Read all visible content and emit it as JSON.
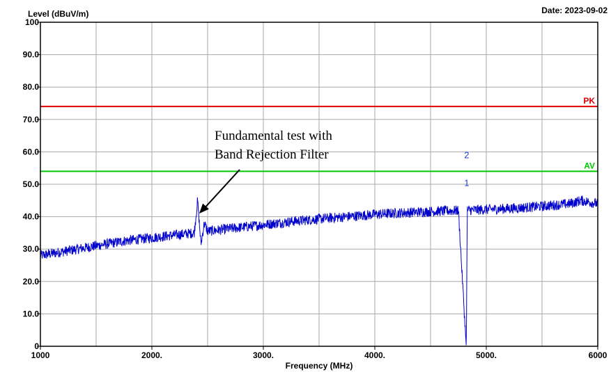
{
  "chart_data": {
    "type": "line",
    "date": "Date: 2023-09-02",
    "ylabel": "Level (dBuV/m)",
    "xlabel": "Frequency (MHz)",
    "xlim": [
      1000,
      6000
    ],
    "ylim": [
      0,
      100
    ],
    "grid": true,
    "x_ticks": [
      {
        "value": 1000,
        "label": "1000"
      },
      {
        "value": 2000,
        "label": "2000."
      },
      {
        "value": 3000,
        "label": "3000."
      },
      {
        "value": 4000,
        "label": "4000."
      },
      {
        "value": 5000,
        "label": "5000."
      },
      {
        "value": 6000,
        "label": "6000"
      }
    ],
    "y_ticks": [
      {
        "value": 0,
        "label": "0"
      },
      {
        "value": 10,
        "label": "10.0"
      },
      {
        "value": 20,
        "label": "20.0"
      },
      {
        "value": 30,
        "label": "30.0"
      },
      {
        "value": 40,
        "label": "40.0"
      },
      {
        "value": 50,
        "label": "50.0"
      },
      {
        "value": 60,
        "label": "60.0"
      },
      {
        "value": 70,
        "label": "70.0"
      },
      {
        "value": 80,
        "label": "80.0"
      },
      {
        "value": 90,
        "label": "90.0"
      },
      {
        "value": 100,
        "label": "100"
      }
    ],
    "limits": [
      {
        "label": "PK",
        "value": 74,
        "color": "#e00000"
      },
      {
        "label": "AV",
        "value": 54,
        "color": "#00c800"
      }
    ],
    "series": [
      {
        "color": "#0000cc",
        "x": [
          1000,
          1250,
          1500,
          1750,
          2000,
          2200,
          2380,
          2410,
          2440,
          2470,
          2500,
          2750,
          3000,
          3250,
          3500,
          3750,
          4000,
          4250,
          4500,
          4750,
          4820,
          4830,
          4840,
          5000,
          5250,
          5500,
          5750,
          5850,
          6000
        ],
        "y": [
          28,
          29.5,
          31,
          32.5,
          33.5,
          34.3,
          35,
          45,
          31.5,
          38,
          35.5,
          36.5,
          37.5,
          38.5,
          39.3,
          40,
          40.7,
          41.2,
          41.6,
          41.9,
          0,
          42,
          42,
          42.2,
          42.6,
          43.2,
          44,
          45,
          44
        ]
      }
    ],
    "markers": [
      {
        "label": "2",
        "x": 4824,
        "y": 58
      },
      {
        "label": "1",
        "x": 4824,
        "y": 49.5
      }
    ],
    "annotation": {
      "lines": [
        "Fundamental test with",
        "Band Rejection Filter"
      ],
      "arrow_to": {
        "x": 2425,
        "y": 41
      }
    }
  }
}
